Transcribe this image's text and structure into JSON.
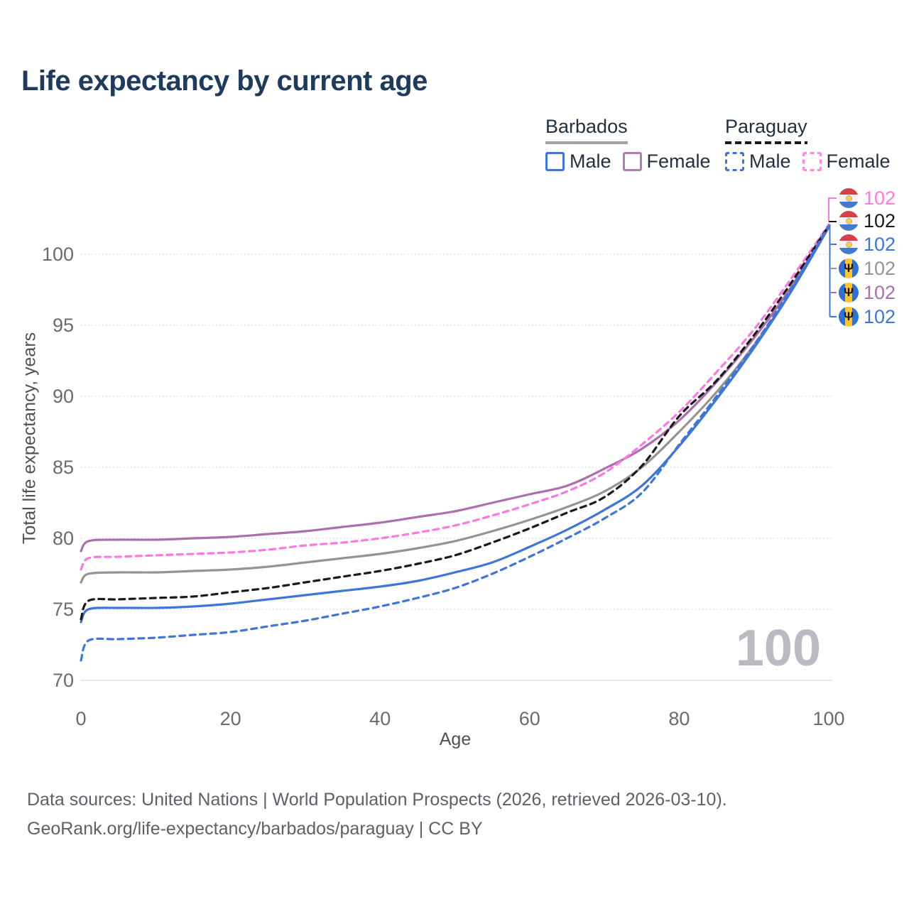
{
  "title": "Life expectancy by current age",
  "legend": {
    "groups": [
      {
        "label": "Barbados",
        "line_style": "solid",
        "rule_color": "#a3a3a3",
        "items": [
          {
            "label": "Male",
            "color": "#3d76d8",
            "dashed": false
          },
          {
            "label": "Female",
            "color": "#b57ab8",
            "dashed": false
          }
        ]
      },
      {
        "label": "Paraguay",
        "line_style": "dashed",
        "rule_color": "#1a1a1a",
        "items": [
          {
            "label": "Male",
            "color": "#3d76d8",
            "dashed": true
          },
          {
            "label": "Female",
            "color": "#ff85e4",
            "dashed": true
          }
        ]
      }
    ]
  },
  "chart_data": {
    "type": "line",
    "title": "Life expectancy by current age",
    "xlabel": "Age",
    "ylabel": "Total life expectancy, years",
    "xlim": [
      0,
      100
    ],
    "ylim": [
      70,
      102.5
    ],
    "x_ticks": [
      0,
      20,
      40,
      60,
      80,
      100
    ],
    "y_ticks": [
      70,
      75,
      80,
      85,
      90,
      95,
      100
    ],
    "grid": "horizontal-dotted",
    "legend_position": "top-right",
    "ages": [
      0,
      1,
      5,
      10,
      15,
      20,
      25,
      30,
      35,
      40,
      45,
      50,
      55,
      60,
      65,
      70,
      75,
      80,
      85,
      90,
      95,
      100
    ],
    "series": [
      {
        "name": "Barbados Both sexes",
        "country": "barbados",
        "sex": "both",
        "color": "#949494",
        "dash": "solid",
        "end_value": 102,
        "values": [
          76.9,
          77.5,
          77.6,
          77.6,
          77.7,
          77.8,
          78.0,
          78.3,
          78.6,
          78.9,
          79.3,
          79.8,
          80.5,
          81.3,
          82.2,
          83.3,
          85.0,
          87.5,
          90.3,
          93.6,
          97.4,
          101.9
        ]
      },
      {
        "name": "Barbados Female",
        "country": "barbados",
        "sex": "female",
        "color": "#ab6fae",
        "dash": "solid",
        "end_value": 102,
        "values": [
          79.1,
          79.8,
          79.9,
          79.9,
          80.0,
          80.1,
          80.3,
          80.5,
          80.8,
          81.1,
          81.5,
          81.9,
          82.5,
          83.1,
          83.7,
          84.9,
          86.3,
          88.3,
          91.0,
          94.1,
          97.7,
          102.0
        ]
      },
      {
        "name": "Barbados Male",
        "country": "barbados",
        "sex": "male",
        "color": "#3d76d8",
        "dash": "solid",
        "end_value": 102,
        "values": [
          74.1,
          75.0,
          75.1,
          75.1,
          75.2,
          75.4,
          75.7,
          76.0,
          76.3,
          76.6,
          77.0,
          77.6,
          78.3,
          79.4,
          80.6,
          82.0,
          83.7,
          86.5,
          89.8,
          93.4,
          97.4,
          101.9
        ]
      },
      {
        "name": "Paraguay Female",
        "country": "paraguay",
        "sex": "female",
        "color": "#ff78e2",
        "dash": "dashed",
        "end_value": 102,
        "values": [
          77.8,
          78.6,
          78.7,
          78.8,
          78.9,
          79.0,
          79.2,
          79.5,
          79.7,
          80.0,
          80.4,
          80.9,
          81.6,
          82.4,
          83.3,
          84.6,
          86.6,
          88.9,
          91.7,
          94.7,
          98.3,
          102.1
        ]
      },
      {
        "name": "Paraguay Both sexes",
        "country": "paraguay",
        "sex": "both",
        "color": "#1a1a1a",
        "dash": "dashed",
        "end_value": 102,
        "values": [
          74.3,
          75.6,
          75.7,
          75.8,
          75.9,
          76.2,
          76.5,
          76.9,
          77.3,
          77.7,
          78.2,
          78.8,
          79.7,
          80.7,
          81.8,
          82.9,
          85.1,
          88.6,
          91.1,
          94.3,
          98.0,
          102.0
        ]
      },
      {
        "name": "Paraguay Male",
        "country": "paraguay",
        "sex": "male",
        "color": "#3d76d8",
        "dash": "dashed",
        "end_value": 102,
        "values": [
          71.4,
          72.8,
          72.9,
          73.0,
          73.2,
          73.4,
          73.8,
          74.2,
          74.7,
          75.2,
          75.8,
          76.5,
          77.5,
          78.7,
          80.0,
          81.4,
          83.2,
          86.6,
          90.0,
          93.6,
          97.6,
          102.0
        ]
      }
    ]
  },
  "end_labels": [
    {
      "flag": "paraguay",
      "value": "102",
      "color": "#ff78e2"
    },
    {
      "flag": "paraguay",
      "value": "102",
      "color": "#1a1a1a"
    },
    {
      "flag": "paraguay",
      "value": "102",
      "color": "#3d76d8"
    },
    {
      "flag": "barbados",
      "value": "102",
      "color": "#949494"
    },
    {
      "flag": "barbados",
      "value": "102",
      "color": "#ab6fae"
    },
    {
      "flag": "barbados",
      "value": "102",
      "color": "#3d76d8"
    }
  ],
  "hover_age_indicator": "100",
  "footer": {
    "line1": "Data sources: United Nations | World Population Prospects (2026, retrieved 2026-03-10).",
    "line2": "GeoRank.org/life-expectancy/barbados/paraguay | CC BY"
  }
}
